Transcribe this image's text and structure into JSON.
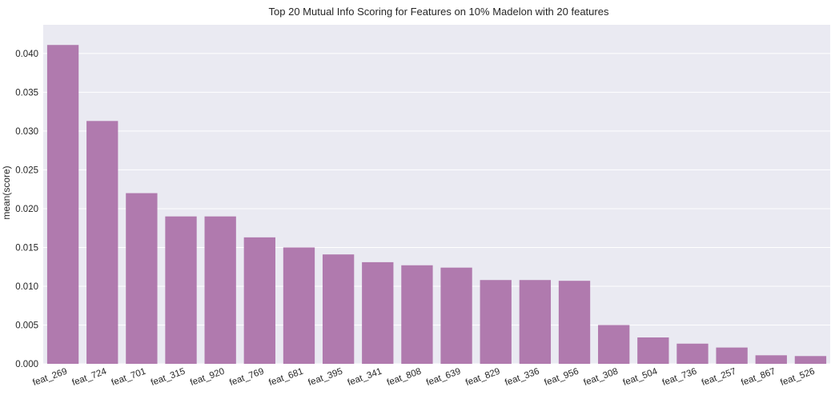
{
  "chart_data": {
    "type": "bar",
    "title": "Top 20 Mutual Info Scoring for Features on 10% Madelon with 20 features",
    "xlabel": "",
    "ylabel": "mean(score)",
    "categories": [
      "feat_269",
      "feat_724",
      "feat_701",
      "feat_315",
      "feat_920",
      "feat_769",
      "feat_681",
      "feat_395",
      "feat_341",
      "feat_808",
      "feat_639",
      "feat_829",
      "feat_336",
      "feat_956",
      "feat_308",
      "feat_504",
      "feat_736",
      "feat_257",
      "feat_867",
      "feat_526"
    ],
    "values": [
      0.0411,
      0.0313,
      0.022,
      0.019,
      0.019,
      0.0163,
      0.015,
      0.0141,
      0.0131,
      0.0127,
      0.0124,
      0.0108,
      0.0108,
      0.0107,
      0.005,
      0.0034,
      0.0026,
      0.0021,
      0.0011,
      0.001
    ],
    "ylim": [
      0,
      0.0437
    ],
    "yticks": [
      "0.000",
      "0.005",
      "0.010",
      "0.015",
      "0.020",
      "0.025",
      "0.030",
      "0.035",
      "0.040"
    ],
    "grid": true,
    "bar_color": "#b07aae",
    "background_color": "#eaeaf2",
    "grid_color": "#ffffff"
  }
}
